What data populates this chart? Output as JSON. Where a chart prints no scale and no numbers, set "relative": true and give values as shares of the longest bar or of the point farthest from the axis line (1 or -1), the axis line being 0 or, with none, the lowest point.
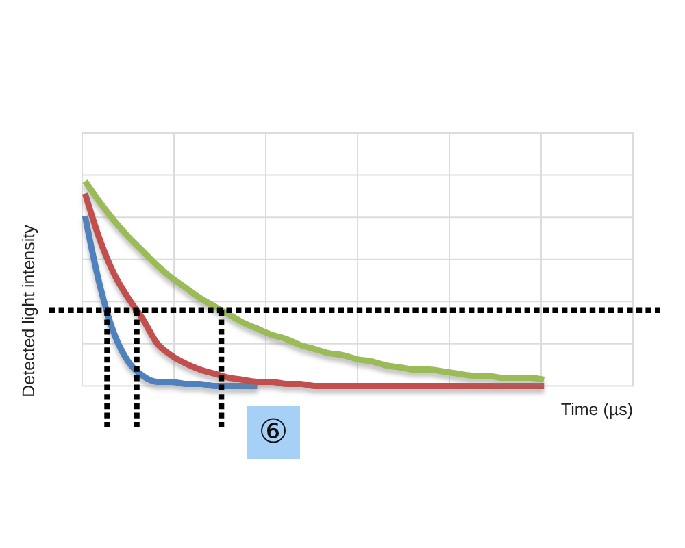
{
  "chart_data": {
    "type": "line",
    "relative": true,
    "xlabel": "Time (µs)",
    "ylabel": "Detected light intensity",
    "categories": [
      null,
      null,
      null,
      null,
      null,
      null,
      null,
      null,
      null,
      null,
      null,
      null,
      null,
      null,
      null,
      null,
      null,
      null,
      null,
      null,
      null,
      null,
      null,
      null,
      null,
      null,
      null,
      null,
      null,
      null,
      null,
      null,
      null,
      null,
      null,
      null,
      null,
      null,
      null
    ],
    "series": [
      {
        "color": "#4f81bd",
        "values": [
          0.83,
          0.5,
          0.26,
          0.12,
          0.05,
          0.02,
          0.02,
          0.01,
          0.01,
          0,
          0,
          0,
          0,
          null,
          null,
          null,
          null,
          null,
          null,
          null,
          null,
          null,
          null,
          null,
          null,
          null,
          null,
          null,
          null,
          null,
          null,
          null,
          null,
          null,
          null,
          null,
          null,
          null,
          null
        ]
      },
      {
        "color": "#c0504d",
        "values": [
          0.94,
          0.72,
          0.55,
          0.43,
          0.33,
          0.21,
          0.15,
          0.11,
          0.08,
          0.06,
          0.04,
          0.03,
          0.02,
          0.02,
          0.01,
          0.01,
          0,
          0,
          0,
          0,
          0,
          0,
          0,
          0,
          0,
          0,
          0,
          0,
          0,
          0,
          0,
          0,
          0,
          null,
          null,
          null,
          null,
          null,
          null
        ]
      },
      {
        "color": "#9bbb59",
        "values": [
          1,
          0.9,
          0.81,
          0.73,
          0.66,
          0.59,
          0.53,
          0.48,
          0.43,
          0.39,
          0.35,
          0.31,
          0.28,
          0.25,
          0.23,
          0.2,
          0.18,
          0.16,
          0.15,
          0.13,
          0.12,
          0.1,
          0.09,
          0.08,
          0.08,
          0.07,
          0.06,
          0.05,
          0.05,
          0.04,
          0.04,
          0.04,
          0.03,
          null,
          null,
          null,
          null,
          null,
          null
        ]
      }
    ],
    "grid": true,
    "ref_lines": [
      {
        "axis": "y",
        "value": 0.37,
        "color": "#000000",
        "line_style": "dotted"
      }
    ],
    "annotations": [
      "⑥"
    ]
  }
}
